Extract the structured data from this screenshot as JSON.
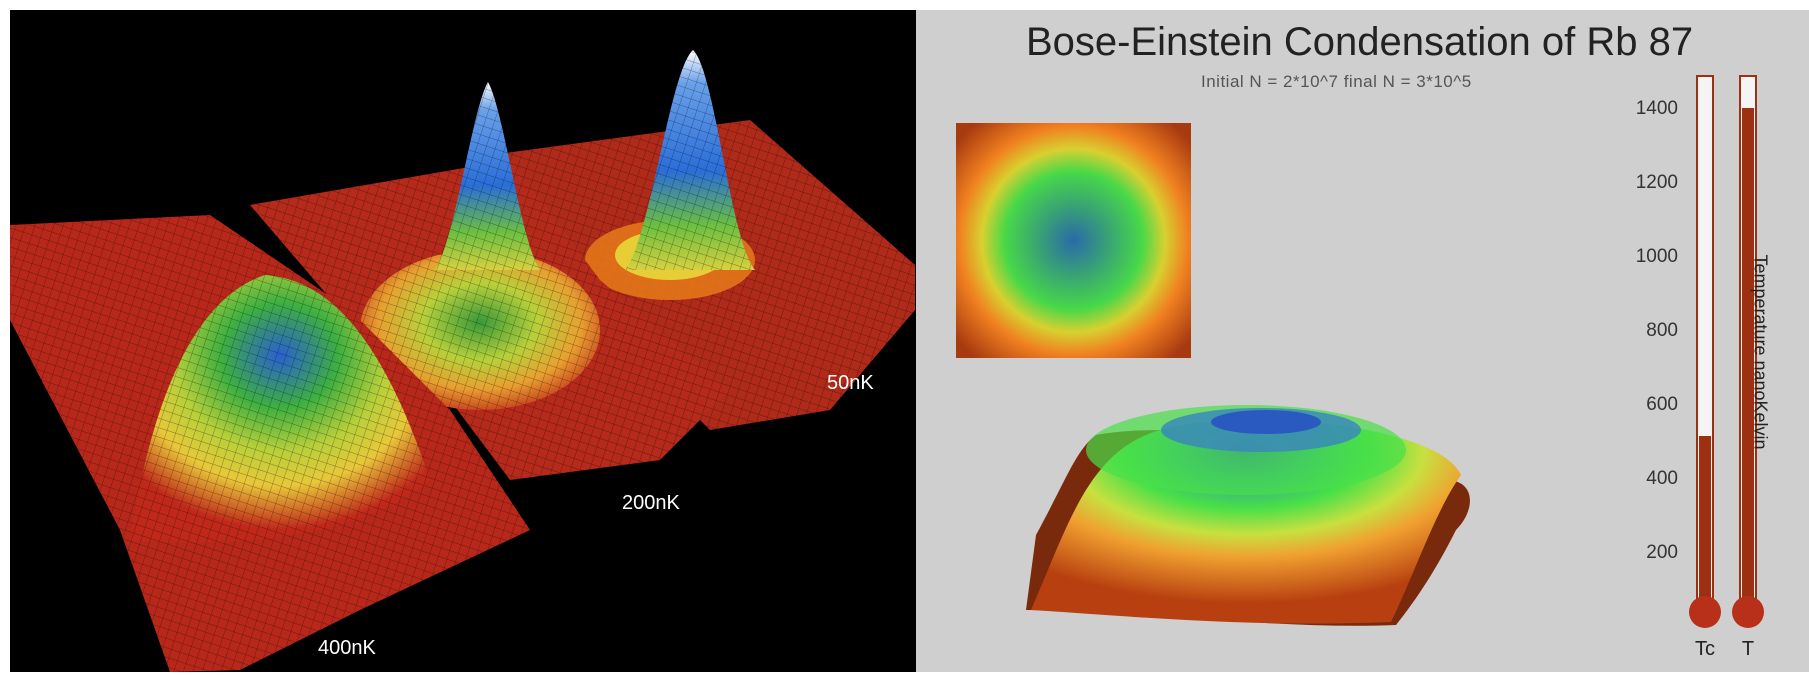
{
  "left_panel": {
    "labels": {
      "t400": "400nK",
      "t200": "200nK",
      "t50": "50nK"
    }
  },
  "right_panel": {
    "title": "Bose-Einstein Condensation of Rb 87",
    "subtitle": "Initial N = 2*10^7   final N = 3*10^5",
    "thermometer": {
      "ticks": [
        "1400",
        "1200",
        "1000",
        "800",
        "600",
        "400",
        "200"
      ],
      "tc_label": "Tc",
      "t_label": "T",
      "axis_label": "Temperature nanoKelvin",
      "tc_fill_fraction": 0.32,
      "t_fill_fraction": 0.94,
      "mercury_color": "#9c3010",
      "tube_color": "#f4f4f4"
    }
  },
  "colors": {
    "left_background": "#000000",
    "right_background": "#cfcfcf",
    "red_base": "#b52a1a",
    "peak_blue": "#3a74d8",
    "mid_green": "#38b83a",
    "yellow": "#e8d83a"
  }
}
